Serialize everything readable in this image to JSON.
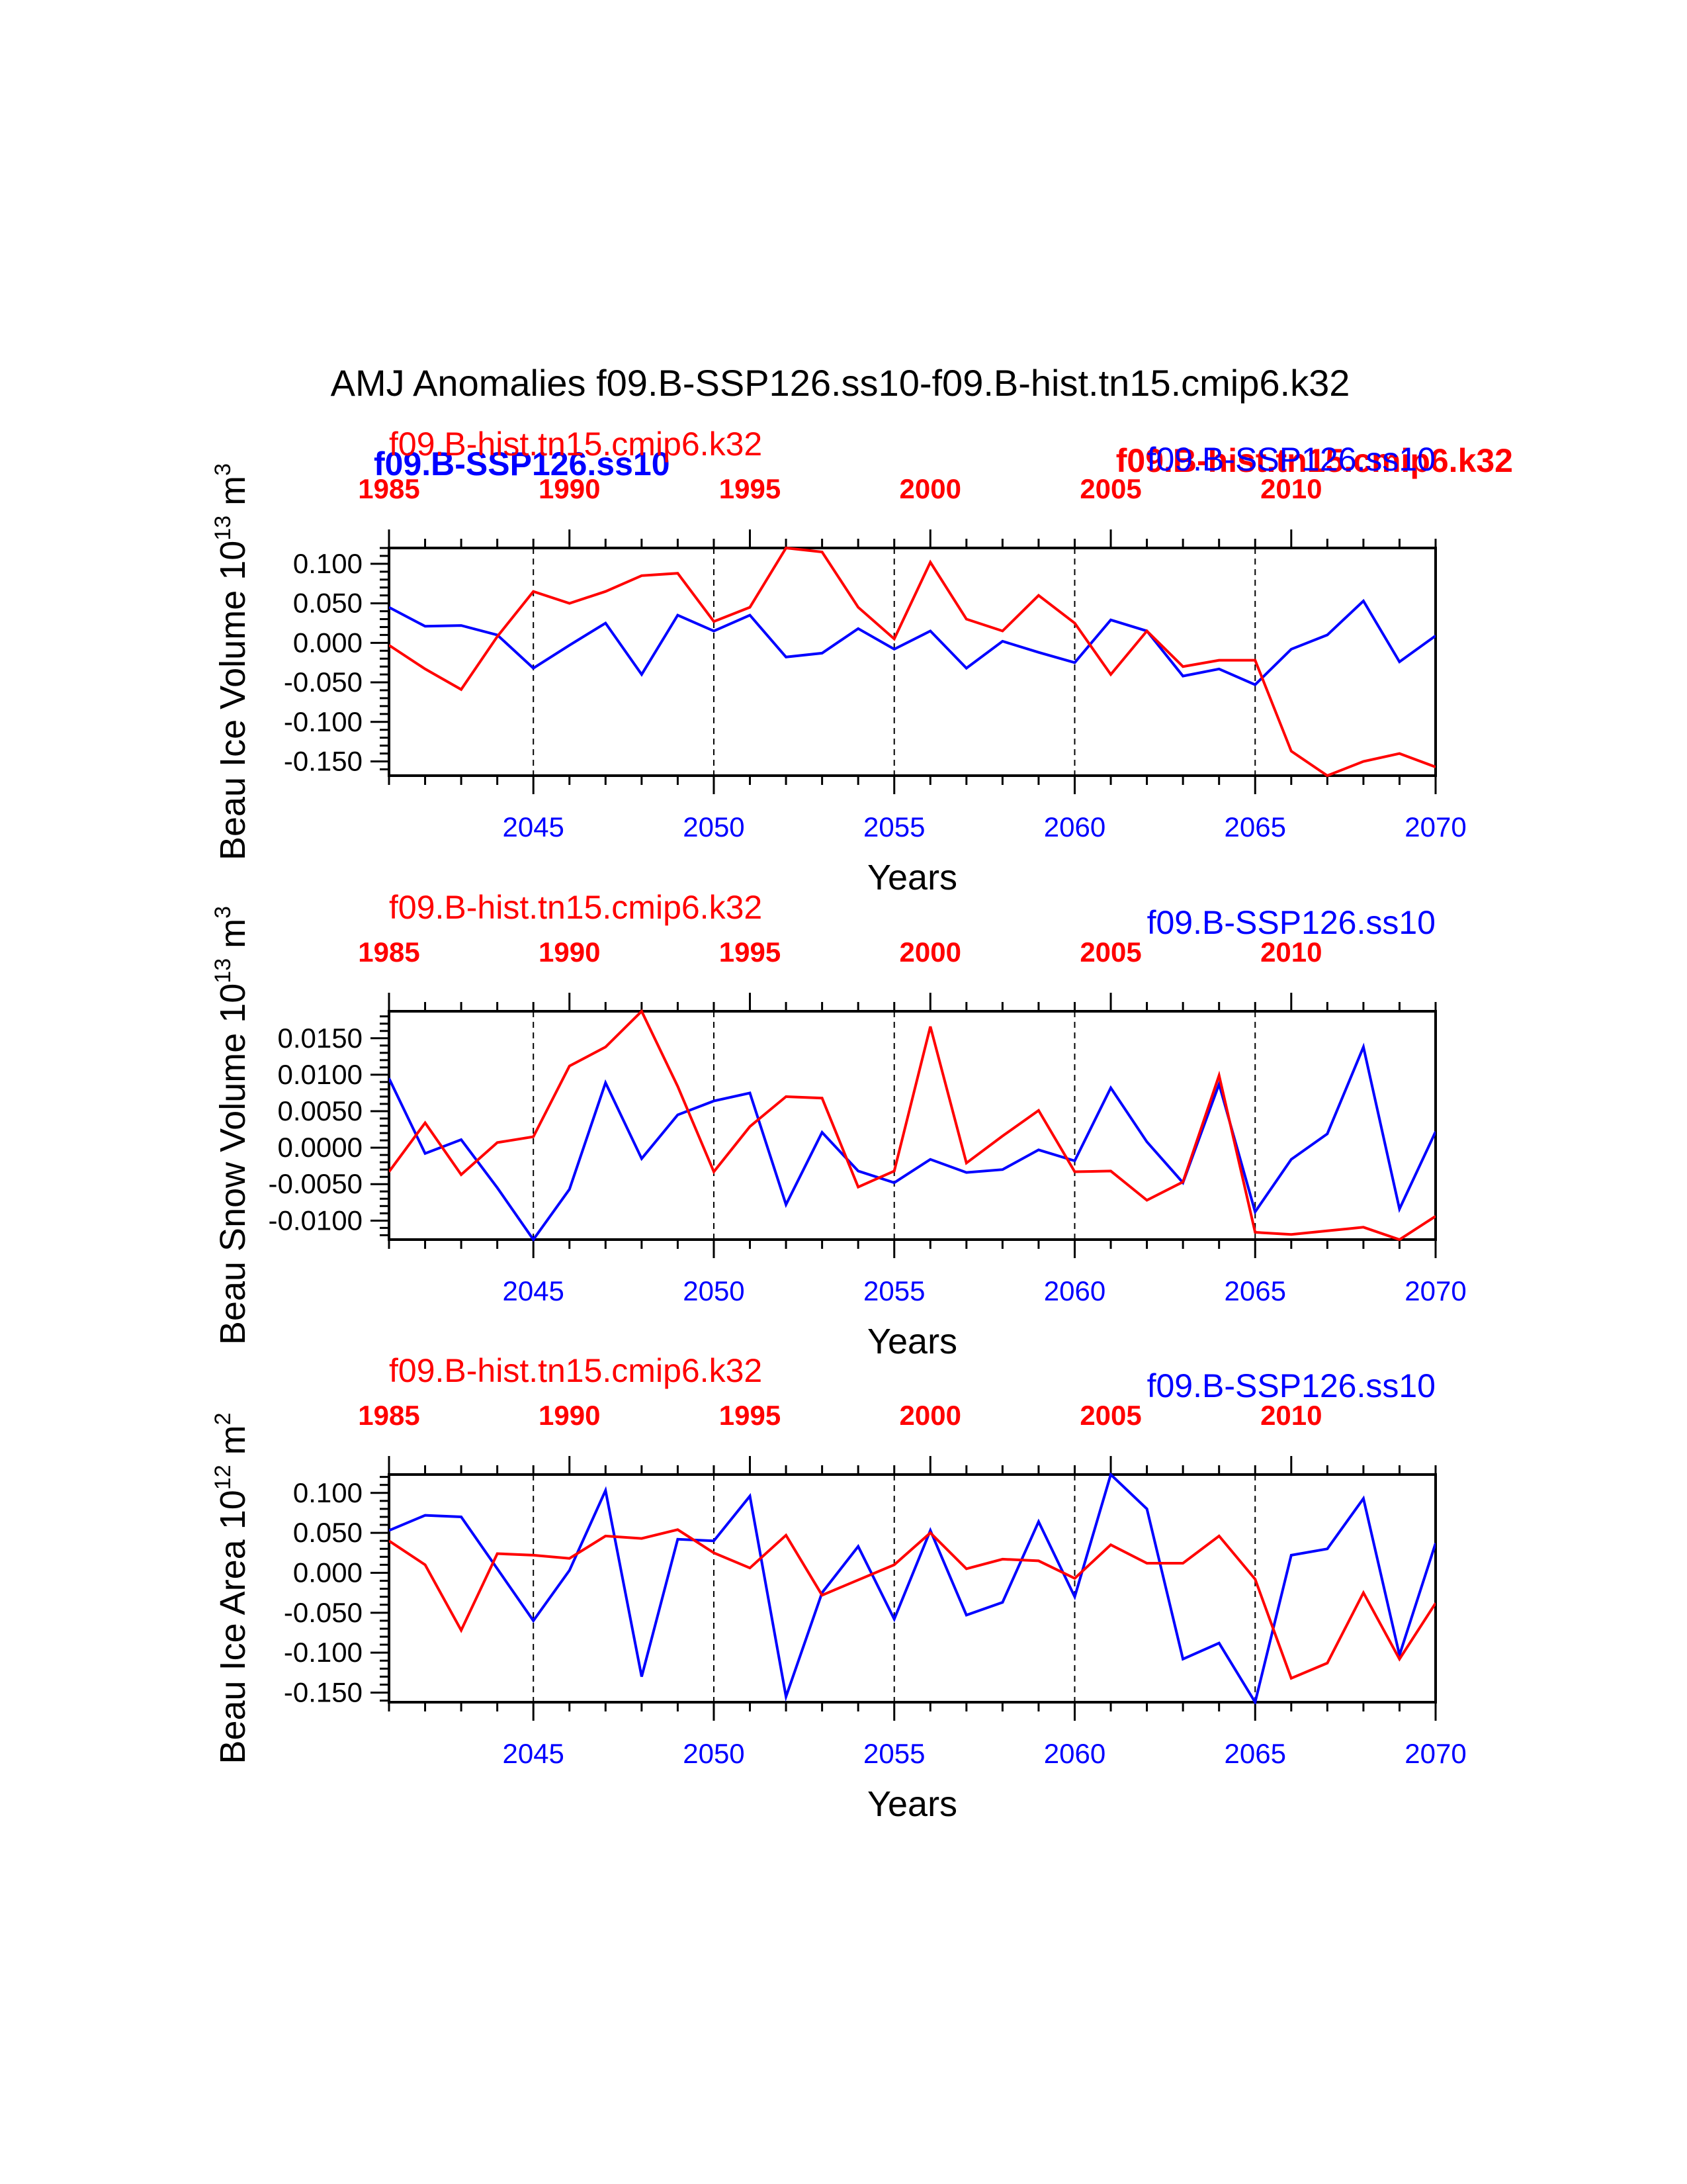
{
  "title": "AMJ Anomalies f09.B-SSP126.ss10-f09.B-hist.tn15.cmip6.k32",
  "colors": {
    "ssp": "#0000ff",
    "hist": "#ff0000",
    "axis": "#000000"
  },
  "overlay_labels": {
    "blue_bold": "f09.B-SSP126.ss10",
    "red_bold": "f09.B-hist.tn15.cmip6.k32"
  },
  "chart_data": [
    {
      "type": "line",
      "ylabel": "Beau Ice Volume 10",
      "ylabel_exp": "13",
      "ylabel_unit": " m",
      "ylabel_unit_exp": "3",
      "xlabel": "Years",
      "top_series_label": "f09.B-hist.tn15.cmip6.k32",
      "bottom_series_label": "f09.B-SSP126.ss10",
      "ylim": [
        -0.168,
        0.12
      ],
      "yticks": [
        0.1,
        0.05,
        0.0,
        -0.05,
        -0.1,
        -0.15
      ],
      "ytick_labels": [
        "0.100",
        "0.050",
        "0.000",
        "-0.050",
        "-0.100",
        "-0.150"
      ],
      "x_bottom": {
        "range": [
          2041,
          2070
        ],
        "ticks": [
          2045,
          2050,
          2055,
          2060,
          2065,
          2070
        ]
      },
      "x_top": {
        "range": [
          1985,
          2014
        ],
        "ticks": [
          1985,
          1990,
          1995,
          2000,
          2005,
          2010
        ]
      },
      "grid_x": [
        2045,
        2050,
        2055,
        2060,
        2065
      ],
      "series": [
        {
          "name": "f09.B-SSP126.ss10",
          "axis": "bottom",
          "x": [
            2041,
            2042,
            2043,
            2044,
            2045,
            2046,
            2047,
            2048,
            2049,
            2050,
            2051,
            2052,
            2053,
            2054,
            2055,
            2056,
            2057,
            2058,
            2059,
            2060,
            2061,
            2062,
            2063,
            2064,
            2065,
            2066,
            2067,
            2068,
            2069,
            2070
          ],
          "values": [
            0.045,
            0.021,
            0.022,
            0.01,
            -0.032,
            -0.003,
            0.025,
            -0.04,
            0.035,
            0.015,
            0.035,
            -0.018,
            -0.013,
            0.018,
            -0.008,
            0.015,
            -0.032,
            0.002,
            -0.012,
            -0.025,
            0.029,
            0.015,
            -0.042,
            -0.033,
            -0.053,
            -0.008,
            0.01,
            0.053,
            -0.024,
            0.009
          ]
        },
        {
          "name": "f09.B-hist.tn15.cmip6.k32",
          "axis": "top",
          "x": [
            1985,
            1986,
            1987,
            1988,
            1989,
            1990,
            1991,
            1992,
            1993,
            1994,
            1995,
            1996,
            1997,
            1998,
            1999,
            2000,
            2001,
            2002,
            2003,
            2004,
            2005,
            2006,
            2007,
            2008,
            2009,
            2010,
            2011,
            2012,
            2013,
            2014
          ],
          "values": [
            -0.003,
            -0.033,
            -0.059,
            0.008,
            0.065,
            0.05,
            0.065,
            0.085,
            0.088,
            0.027,
            0.045,
            0.12,
            0.115,
            0.045,
            0.005,
            0.102,
            0.03,
            0.015,
            0.06,
            0.025,
            -0.04,
            0.015,
            -0.03,
            -0.022,
            -0.022,
            -0.137,
            -0.168,
            -0.15,
            -0.14,
            -0.157
          ]
        }
      ]
    },
    {
      "type": "line",
      "ylabel": "Beau Snow Volume 10",
      "ylabel_exp": "13",
      "ylabel_unit": " m",
      "ylabel_unit_exp": "3",
      "xlabel": "Years",
      "top_series_label": "f09.B-hist.tn15.cmip6.k32",
      "bottom_series_label": "f09.B-SSP126.ss10",
      "ylim": [
        -0.0126,
        0.0187
      ],
      "yticks": [
        0.015,
        0.01,
        0.005,
        0.0,
        -0.005,
        -0.01
      ],
      "ytick_labels": [
        "0.0150",
        "0.0100",
        "0.0050",
        "0.0000",
        "-0.0050",
        "-0.0100"
      ],
      "x_bottom": {
        "range": [
          2041,
          2070
        ],
        "ticks": [
          2045,
          2050,
          2055,
          2060,
          2065,
          2070
        ]
      },
      "x_top": {
        "range": [
          1985,
          2014
        ],
        "ticks": [
          1985,
          1990,
          1995,
          2000,
          2005,
          2010
        ]
      },
      "grid_x": [
        2045,
        2050,
        2055,
        2060,
        2065
      ],
      "series": [
        {
          "name": "f09.B-SSP126.ss10",
          "axis": "bottom",
          "x": [
            2041,
            2042,
            2043,
            2044,
            2045,
            2046,
            2047,
            2048,
            2049,
            2050,
            2051,
            2052,
            2053,
            2054,
            2055,
            2056,
            2057,
            2058,
            2059,
            2060,
            2061,
            2062,
            2063,
            2064,
            2065,
            2066,
            2067,
            2068,
            2069,
            2070
          ],
          "values": [
            0.0095,
            -0.0008,
            0.0011,
            -0.0055,
            -0.0126,
            -0.0057,
            0.0089,
            -0.0015,
            0.0045,
            0.0064,
            0.0075,
            -0.0078,
            0.0021,
            -0.0032,
            -0.0048,
            -0.0016,
            -0.0034,
            -0.003,
            -0.0003,
            -0.0018,
            0.0082,
            0.0008,
            -0.0048,
            0.0087,
            -0.0088,
            -0.0016,
            0.0019,
            0.0138,
            -0.0084,
            0.0022
          ]
        },
        {
          "name": "f09.B-hist.tn15.cmip6.k32",
          "axis": "top",
          "x": [
            1985,
            1986,
            1987,
            1988,
            1989,
            1990,
            1991,
            1992,
            1993,
            1994,
            1995,
            1996,
            1997,
            1998,
            1999,
            2000,
            2001,
            2002,
            2003,
            2004,
            2005,
            2006,
            2007,
            2008,
            2009,
            2010,
            2011,
            2012,
            2013,
            2014
          ],
          "values": [
            -0.0033,
            0.0034,
            -0.0037,
            0.0007,
            0.0015,
            0.0112,
            0.0138,
            0.0187,
            0.0084,
            -0.0033,
            0.0029,
            0.007,
            0.0068,
            -0.0054,
            -0.0032,
            0.0166,
            -0.0021,
            0.0016,
            0.0051,
            -0.0033,
            -0.0032,
            -0.0072,
            -0.0047,
            0.0099,
            -0.0116,
            -0.0119,
            -0.0114,
            -0.0109,
            -0.0126,
            -0.0094
          ]
        }
      ]
    },
    {
      "type": "line",
      "ylabel": "Beau Ice Area 10",
      "ylabel_exp": "12",
      "ylabel_unit": " m",
      "ylabel_unit_exp": "2",
      "xlabel": "Years",
      "top_series_label": "f09.B-hist.tn15.cmip6.k32",
      "bottom_series_label": "f09.B-SSP126.ss10",
      "ylim": [
        -0.162,
        0.123
      ],
      "yticks": [
        0.1,
        0.05,
        0.0,
        -0.05,
        -0.1,
        -0.15
      ],
      "ytick_labels": [
        "0.100",
        "0.050",
        "0.000",
        "-0.050",
        "-0.100",
        "-0.150"
      ],
      "x_bottom": {
        "range": [
          2041,
          2070
        ],
        "ticks": [
          2045,
          2050,
          2055,
          2060,
          2065,
          2070
        ]
      },
      "x_top": {
        "range": [
          1985,
          2014
        ],
        "ticks": [
          1985,
          1990,
          1995,
          2000,
          2005,
          2010
        ]
      },
      "grid_x": [
        2045,
        2050,
        2055,
        2060,
        2065
      ],
      "series": [
        {
          "name": "f09.B-SSP126.ss10",
          "axis": "bottom",
          "x": [
            2041,
            2042,
            2043,
            2044,
            2045,
            2046,
            2047,
            2048,
            2049,
            2050,
            2051,
            2052,
            2053,
            2054,
            2055,
            2056,
            2057,
            2058,
            2059,
            2060,
            2061,
            2062,
            2063,
            2064,
            2065,
            2066,
            2067,
            2068,
            2069,
            2070
          ],
          "values": [
            0.053,
            0.072,
            0.07,
            0.005,
            -0.06,
            0.003,
            0.103,
            -0.13,
            0.042,
            0.04,
            0.096,
            -0.155,
            -0.025,
            0.033,
            -0.058,
            0.053,
            -0.053,
            -0.037,
            0.064,
            -0.03,
            0.123,
            0.08,
            -0.108,
            -0.088,
            -0.162,
            0.022,
            0.03,
            0.093,
            -0.103,
            0.037
          ]
        },
        {
          "name": "f09.B-hist.tn15.cmip6.k32",
          "axis": "top",
          "x": [
            1985,
            1986,
            1987,
            1988,
            1989,
            1990,
            1991,
            1992,
            1993,
            1994,
            1995,
            1996,
            1997,
            1998,
            1999,
            2000,
            2001,
            2002,
            2003,
            2004,
            2005,
            2006,
            2007,
            2008,
            2009,
            2010,
            2011,
            2012,
            2013,
            2014
          ],
          "values": [
            0.04,
            0.01,
            -0.072,
            0.024,
            0.022,
            0.018,
            0.046,
            0.043,
            0.054,
            0.025,
            0.006,
            0.047,
            -0.028,
            -0.009,
            0.01,
            0.05,
            0.005,
            0.017,
            0.015,
            -0.007,
            0.035,
            0.012,
            0.012,
            0.046,
            -0.008,
            -0.132,
            -0.113,
            -0.025,
            -0.108,
            -0.038
          ]
        }
      ]
    }
  ]
}
